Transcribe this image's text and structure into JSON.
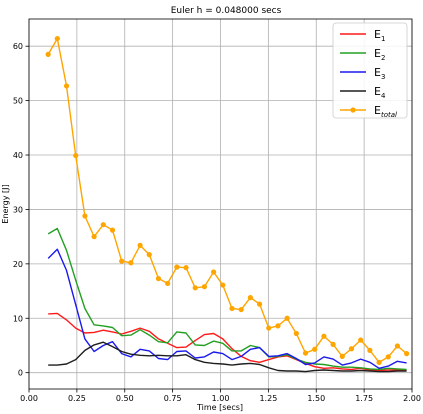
{
  "chart_data": {
    "type": "line",
    "title": "Euler h = 0.048000 secs",
    "xlabel": "Time [secs]",
    "ylabel": "Energy [J]",
    "xlim": [
      0.0,
      2.0
    ],
    "ylim": [
      -3,
      65
    ],
    "xticks": [
      "0.00",
      "0.25",
      "0.50",
      "0.75",
      "1.00",
      "1.25",
      "1.50",
      "1.75",
      "2.00"
    ],
    "yticks": [
      "0",
      "10",
      "20",
      "30",
      "40",
      "50",
      "60"
    ],
    "grid": true,
    "legend_position": "top-right",
    "x": [
      0.1,
      0.148,
      0.196,
      0.244,
      0.292,
      0.34,
      0.388,
      0.436,
      0.484,
      0.532,
      0.58,
      0.628,
      0.676,
      0.724,
      0.772,
      0.82,
      0.868,
      0.916,
      0.964,
      1.012,
      1.06,
      1.108,
      1.156,
      1.204,
      1.252,
      1.3,
      1.348,
      1.396,
      1.444,
      1.492,
      1.54,
      1.588,
      1.636,
      1.684,
      1.732,
      1.78,
      1.828,
      1.876,
      1.924,
      1.972
    ],
    "series": [
      {
        "name": "E",
        "sub": "1",
        "color": "#ff1a1a",
        "marker": false,
        "values": [
          10.8,
          10.9,
          9.7,
          8.2,
          7.3,
          7.4,
          7.8,
          7.5,
          7.1,
          7.6,
          8.2,
          7.6,
          6.2,
          5.4,
          4.6,
          4.7,
          5.9,
          7.0,
          7.2,
          6.2,
          4.4,
          3.0,
          2.2,
          1.9,
          2.4,
          2.9,
          3.1,
          2.4,
          1.7,
          1.1,
          0.8,
          0.9,
          0.7,
          0.6,
          0.8,
          0.5,
          0.4,
          0.5,
          0.5,
          0.4
        ]
      },
      {
        "name": "E",
        "sub": "2",
        "color": "#22a022",
        "marker": false,
        "values": [
          25.5,
          26.5,
          22.5,
          17.0,
          11.8,
          8.8,
          8.6,
          8.3,
          6.8,
          6.9,
          7.9,
          6.9,
          5.7,
          5.5,
          7.5,
          7.3,
          5.1,
          5.0,
          5.8,
          5.4,
          4.0,
          4.0,
          5.0,
          4.6,
          2.9,
          3.0,
          3.3,
          2.5,
          1.9,
          1.6,
          1.5,
          1.2,
          1.0,
          1.0,
          0.9,
          0.7,
          0.6,
          0.8,
          0.7,
          0.6
        ]
      },
      {
        "name": "E",
        "sub": "3",
        "color": "#1a1aee",
        "marker": false,
        "values": [
          21.0,
          22.7,
          18.8,
          12.5,
          6.2,
          3.9,
          5.0,
          5.7,
          3.5,
          2.9,
          4.3,
          4.0,
          2.6,
          2.4,
          3.9,
          4.0,
          2.7,
          2.9,
          3.8,
          3.5,
          2.4,
          3.0,
          4.3,
          4.6,
          3.0,
          3.1,
          3.5,
          2.6,
          1.5,
          1.8,
          2.9,
          2.5,
          1.4,
          1.8,
          2.5,
          1.9,
          0.8,
          1.2,
          2.1,
          1.8
        ]
      },
      {
        "name": "E",
        "sub": "4",
        "color": "#1e1e1e",
        "marker": false,
        "values": [
          1.4,
          1.4,
          1.6,
          2.4,
          4.1,
          5.1,
          5.6,
          4.8,
          3.9,
          3.4,
          3.2,
          3.1,
          3.2,
          3.1,
          3.1,
          3.3,
          2.4,
          1.9,
          1.7,
          1.6,
          1.4,
          1.6,
          1.7,
          1.5,
          0.9,
          0.4,
          0.3,
          0.3,
          0.2,
          0.4,
          0.5,
          0.4,
          0.3,
          0.3,
          0.4,
          0.3,
          0.2,
          0.2,
          0.3,
          0.3
        ]
      },
      {
        "name": "E",
        "sub": "total",
        "color": "#ffa500",
        "marker": true,
        "values": [
          58.5,
          61.4,
          52.7,
          39.9,
          28.8,
          25.0,
          27.2,
          26.2,
          20.5,
          20.2,
          23.4,
          21.7,
          17.3,
          16.4,
          19.4,
          19.3,
          15.6,
          15.8,
          18.5,
          16.1,
          11.8,
          11.6,
          13.8,
          12.6,
          8.2,
          8.6,
          10.0,
          7.2,
          3.6,
          4.3,
          6.7,
          5.2,
          3.0,
          4.4,
          6.0,
          4.1,
          1.9,
          2.9,
          4.9,
          3.5
        ]
      }
    ]
  }
}
